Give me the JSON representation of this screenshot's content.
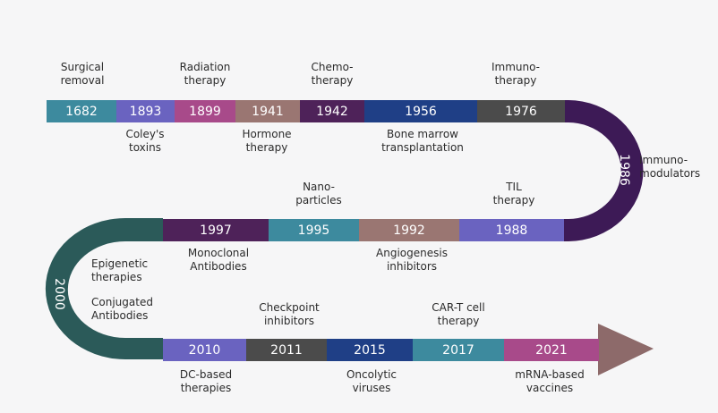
{
  "row1": {
    "years": [
      "1682",
      "1893",
      "1899",
      "1941",
      "1942",
      "1956",
      "1976"
    ],
    "labels_above": [
      "Surgical\nremoval",
      "Radiation\ntherapy",
      "Chemo-\ntherapy",
      "Immuno-\ntherapy"
    ],
    "labels_below": [
      "Coley's\ntoxins",
      "Hormone\ntherapy",
      "Bone marrow\ntransplantation"
    ]
  },
  "curve_right": {
    "year": "1986",
    "label": "Immuno-\nmodulators"
  },
  "row2": {
    "years": [
      "1997",
      "1995",
      "1992",
      "1988"
    ],
    "labels_above": [
      "Nano-\nparticles",
      "TIL\ntherapy"
    ],
    "labels_below": [
      "Monoclonal\nAntibodies",
      "Angiogenesis\ninhibitors"
    ]
  },
  "curve_left": {
    "year": "2000",
    "label1": "Epigenetic\ntherapies",
    "label2": "Conjugated\nAntibodies"
  },
  "row3": {
    "years": [
      "2010",
      "2011",
      "2015",
      "2017",
      "2021"
    ],
    "labels_above": [
      "Checkpoint\ninhibitors",
      "CAR-T cell\ntherapy"
    ],
    "labels_below": [
      "DC-based\ntherapies",
      "Oncolytic\nviruses",
      "mRNA-based\nvaccines"
    ]
  },
  "colors": {
    "teal": "#3d8a9e",
    "indigo": "#6a63c0",
    "magenta": "#a84a8a",
    "taupe": "#9a7672",
    "plum": "#4e2259",
    "navy": "#1f3f86",
    "gray": "#4b4b4b",
    "darkplum": "#3d1a56",
    "darkgreen": "#2b5a59",
    "arrow": "#8d6a6a"
  }
}
